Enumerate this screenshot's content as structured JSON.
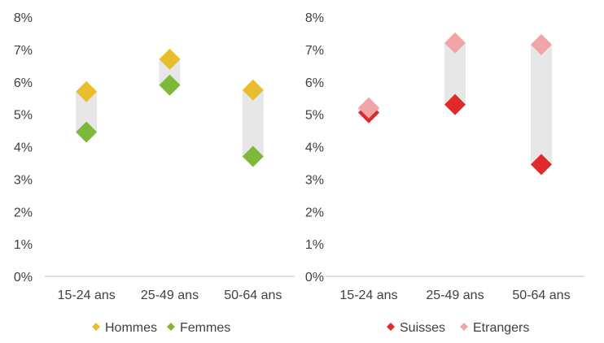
{
  "chart_data": [
    {
      "type": "scatter",
      "categories": [
        "15-24 ans",
        "25-49 ans",
        "50-64 ans"
      ],
      "ylim": [
        0,
        8
      ],
      "yticks": [
        "0%",
        "1%",
        "2%",
        "3%",
        "4%",
        "5%",
        "6%",
        "7%",
        "8%"
      ],
      "series": [
        {
          "name": "Hommes",
          "values": [
            5.7,
            6.7,
            5.75
          ],
          "color": "#E8BE2E"
        },
        {
          "name": "Femmes",
          "values": [
            4.45,
            5.9,
            3.7
          ],
          "color": "#7DB83A"
        }
      ],
      "range_bars": true,
      "legend": "bottom",
      "grid": false
    },
    {
      "type": "scatter",
      "categories": [
        "15-24 ans",
        "25-49 ans",
        "50-64 ans"
      ],
      "ylim": [
        0,
        8
      ],
      "yticks": [
        "0%",
        "1%",
        "2%",
        "3%",
        "4%",
        "5%",
        "6%",
        "7%",
        "8%"
      ],
      "series": [
        {
          "name": "Suisses",
          "values": [
            5.05,
            5.3,
            3.45
          ],
          "color": "#E0292B"
        },
        {
          "name": "Etrangers",
          "values": [
            5.2,
            7.2,
            7.15
          ],
          "color": "#F1A5A8"
        }
      ],
      "range_bars": true,
      "legend": "bottom",
      "grid": false
    }
  ]
}
